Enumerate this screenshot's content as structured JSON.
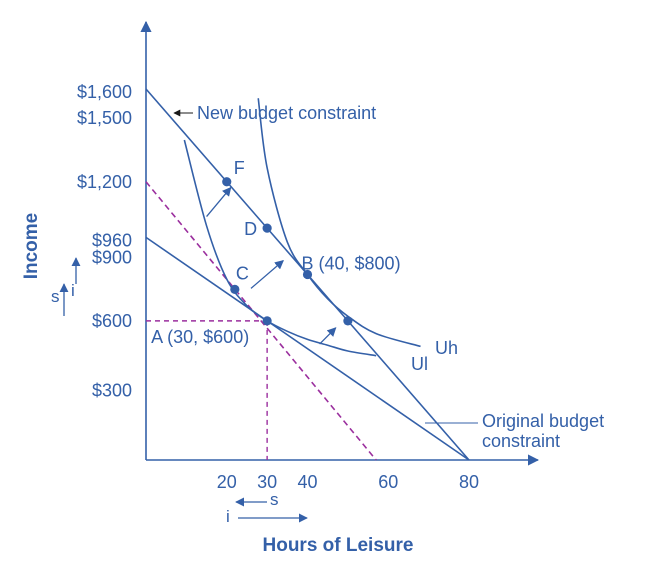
{
  "colors": {
    "main": "#3460a8",
    "dashed_purple": "#9b2f9e",
    "background": "#ffffff"
  },
  "chart_data": {
    "type": "line",
    "xlabel": "Hours of Leisure",
    "ylabel": "Income",
    "xlim": [
      0,
      95
    ],
    "ylim": [
      0,
      1800
    ],
    "x_ticks": [
      {
        "value": 20,
        "label": "20"
      },
      {
        "value": 30,
        "label": "30"
      },
      {
        "value": 40,
        "label": "40"
      },
      {
        "value": 60,
        "label": "60"
      },
      {
        "value": 80,
        "label": "80"
      }
    ],
    "y_ticks": [
      {
        "value": 1600,
        "label": "$1,600"
      },
      {
        "value": 1500,
        "label": "$1,500"
      },
      {
        "value": 1200,
        "label": "$1,200"
      },
      {
        "value": 960,
        "label": "$960"
      },
      {
        "value": 900,
        "label": "$900"
      },
      {
        "value": 600,
        "label": "$600"
      },
      {
        "value": 300,
        "label": "$300"
      }
    ],
    "lines": [
      {
        "key": "original",
        "style": "solid",
        "x": [
          0,
          80
        ],
        "y": [
          960,
          0
        ]
      },
      {
        "key": "new",
        "style": "solid",
        "x": [
          0,
          80
        ],
        "y": [
          1600,
          0
        ]
      },
      {
        "key": "parallel",
        "style": "dashed",
        "x": [
          0,
          57
        ],
        "y": [
          1200,
          0
        ]
      }
    ],
    "guides": [
      {
        "x": [
          0,
          30
        ],
        "y": [
          600,
          600
        ]
      },
      {
        "x": [
          30,
          30
        ],
        "y": [
          600,
          0
        ]
      }
    ],
    "indifference_curves": [
      {
        "key": "Ul",
        "x": [
          9.5,
          15,
          20,
          25,
          30,
          35,
          40,
          45,
          50,
          57
        ],
        "y": [
          1380,
          1010,
          780,
          665,
          600,
          555,
          520,
          495,
          470,
          450
        ]
      },
      {
        "key": "Uh",
        "x": [
          27.8,
          30,
          35,
          40,
          45,
          50,
          57,
          68
        ],
        "y": [
          1560,
          1260,
          940,
          800,
          695,
          620,
          545,
          490
        ]
      }
    ],
    "points": [
      {
        "key": "F",
        "x": 20,
        "y": 1200,
        "label": "F"
      },
      {
        "key": "D",
        "x": 30,
        "y": 1000,
        "label": "D"
      },
      {
        "key": "B",
        "x": 40,
        "y": 800,
        "label": "B (40, $800)"
      },
      {
        "key": "C",
        "x": 22,
        "y": 736,
        "label": "C"
      },
      {
        "key": "A",
        "x": 30,
        "y": 600,
        "label": "A (30, $600)"
      },
      {
        "key": "E",
        "x": 50,
        "y": 600,
        "label": ""
      }
    ],
    "arrows": [
      {
        "from": [
          15,
          1050
        ],
        "to": [
          21,
          1175
        ]
      },
      {
        "from": [
          26,
          740
        ],
        "to": [
          34,
          860
        ]
      },
      {
        "from": [
          43,
          500
        ],
        "to": [
          47,
          570
        ]
      }
    ],
    "annotations": {
      "new_budget": "New budget constraint",
      "original_budget_line1": "Original budget",
      "original_budget_line2": "constraint",
      "uh": "Uh",
      "ul": "Ul",
      "s": "s",
      "i": "i"
    }
  }
}
